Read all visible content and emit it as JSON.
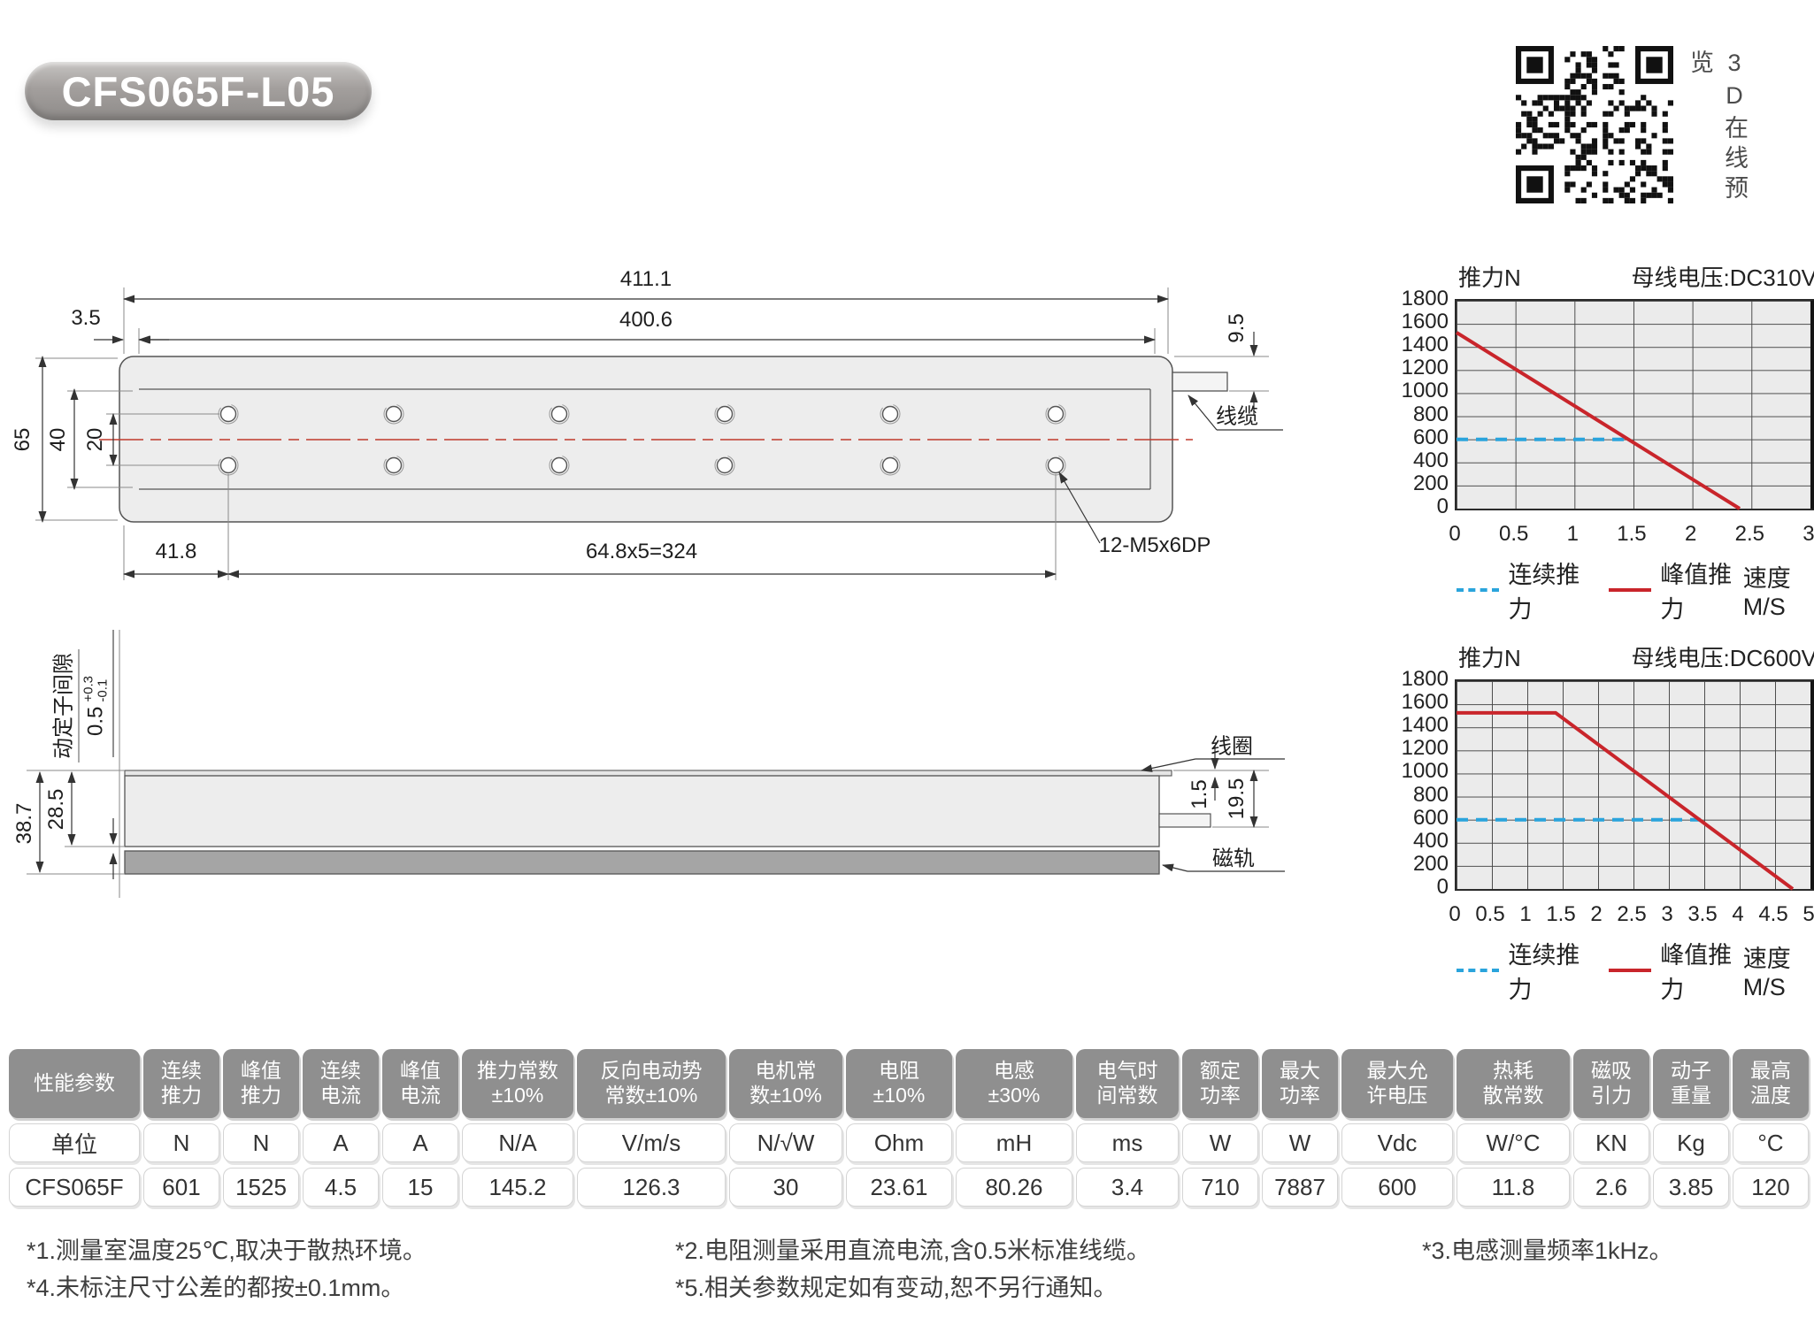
{
  "page": {
    "model": "CFS065F-L05"
  },
  "qr": {
    "label": "3D在线预览"
  },
  "drawing_top": {
    "dim_overall_length": "411.1",
    "dim_body_length": "400.6",
    "dim_left_offset": "3.5",
    "dim_cable_width": "9.5",
    "dim_overall_width": "65",
    "dim_inner_width": "40",
    "dim_hole_spacing": "20",
    "dim_first_hole": "41.8",
    "dim_hole_pitch": "64.8x5=324",
    "hole_spec": "12-M5x6DP",
    "cable_label": "线缆"
  },
  "drawing_side": {
    "tolerance_base": "0.5",
    "tolerance_plus": "+0.3",
    "tolerance_minus": "-0.1",
    "gap_label": "动定子间隙",
    "dim_total_height": "38.7",
    "dim_coil_height": "28.5",
    "coil_label": "线圈",
    "dim_plate_thickness": "1.5",
    "dim_tab_height": "19.5",
    "rail_label": "磁轨"
  },
  "chart_data": [
    {
      "type": "line",
      "y_axis_title": "推力N",
      "bus_voltage": "母线电压:DC310V",
      "xlabel": "速度M/S",
      "x_max": 3,
      "y_max": 1800,
      "x_ticks": [
        "0",
        "0.5",
        "1",
        "1.5",
        "2",
        "2.5",
        "3"
      ],
      "y_ticks": [
        "1800",
        "1600",
        "1400",
        "1200",
        "1000",
        "800",
        "600",
        "400",
        "200",
        "0"
      ],
      "legend": [
        {
          "label": "连续推力",
          "style": "dashed",
          "color": "#2aa4dc"
        },
        {
          "label": "峰值推力",
          "style": "solid",
          "color": "#c9252b"
        }
      ],
      "series": [
        {
          "name": "峰值推力",
          "color": "#c9252b",
          "points": [
            [
              0,
              1525
            ],
            [
              2.4,
              0
            ]
          ]
        },
        {
          "name": "连续推力",
          "color": "#2aa4dc",
          "dashed": true,
          "points": [
            [
              0,
              600
            ],
            [
              1.45,
              600
            ]
          ]
        }
      ]
    },
    {
      "type": "line",
      "y_axis_title": "推力N",
      "bus_voltage": "母线电压:DC600V",
      "xlabel": "速度M/S",
      "x_max": 5,
      "y_max": 1800,
      "x_ticks": [
        "0",
        "0.5",
        "1",
        "1.5",
        "2",
        "2.5",
        "3",
        "3.5",
        "4",
        "4.5",
        "5"
      ],
      "y_ticks": [
        "1800",
        "1600",
        "1400",
        "1200",
        "1000",
        "800",
        "600",
        "400",
        "200",
        "0"
      ],
      "legend": [
        {
          "label": "连续推力",
          "style": "dashed",
          "color": "#2aa4dc"
        },
        {
          "label": "峰值推力",
          "style": "solid",
          "color": "#c9252b"
        }
      ],
      "series": [
        {
          "name": "峰值推力",
          "color": "#c9252b",
          "points": [
            [
              0,
              1525
            ],
            [
              1.4,
              1525
            ],
            [
              4.75,
              0
            ]
          ]
        },
        {
          "name": "连续推力",
          "color": "#2aa4dc",
          "dashed": true,
          "points": [
            [
              0,
              600
            ],
            [
              3.45,
              600
            ]
          ]
        }
      ]
    }
  ],
  "table": {
    "columns": [
      {
        "header": "性能参数",
        "unit": "单位",
        "value": "CFS065F"
      },
      {
        "header": "连续\n推力",
        "unit": "N",
        "value": "601"
      },
      {
        "header": "峰值\n推力",
        "unit": "N",
        "value": "1525"
      },
      {
        "header": "连续\n电流",
        "unit": "A",
        "value": "4.5"
      },
      {
        "header": "峰值\n电流",
        "unit": "A",
        "value": "15"
      },
      {
        "header": "推力常数\n±10%",
        "unit": "N/A",
        "value": "145.2"
      },
      {
        "header": "反向电动势\n常数±10%",
        "unit": "V/m/s",
        "value": "126.3"
      },
      {
        "header": "电机常\n数±10%",
        "unit": "N/√W",
        "value": "30"
      },
      {
        "header": "电阻\n±10%",
        "unit": "Ohm",
        "value": "23.61"
      },
      {
        "header": "电感\n±30%",
        "unit": "mH",
        "value": "80.26"
      },
      {
        "header": "电气时\n间常数",
        "unit": "ms",
        "value": "3.4"
      },
      {
        "header": "额定\n功率",
        "unit": "W",
        "value": "710"
      },
      {
        "header": "最大\n功率",
        "unit": "W",
        "value": "7887"
      },
      {
        "header": "最大允\n许电压",
        "unit": "Vdc",
        "value": "600"
      },
      {
        "header": "热耗\n散常数",
        "unit": "W/°C",
        "value": "11.8"
      },
      {
        "header": "磁吸\n引力",
        "unit": "KN",
        "value": "2.6"
      },
      {
        "header": "动子\n重量",
        "unit": "Kg",
        "value": "3.85"
      },
      {
        "header": "最高\n温度",
        "unit": "°C",
        "value": "120"
      }
    ]
  },
  "footnotes": {
    "n1": "*1.测量室温度25℃,取决于散热环境。",
    "n4": "*4.未标注尺寸公差的都按±0.1mm。",
    "n2": "*2.电阻测量采用直流电流,含0.5米标准线缆。",
    "n5": "*5.相关参数规定如有变动,恕不另行通知。",
    "n3": "*3.电感测量频率1kHz。"
  }
}
